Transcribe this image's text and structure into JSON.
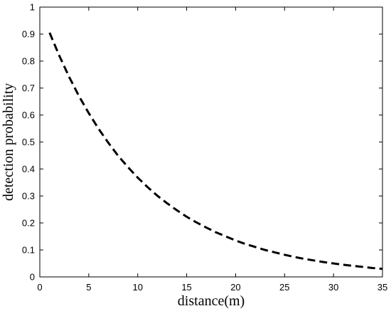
{
  "chart_data": {
    "type": "line",
    "title": "",
    "xlabel": "distance(m)",
    "ylabel": "detection probability",
    "xlim": [
      0,
      35
    ],
    "ylim": [
      0,
      1
    ],
    "xticks": [
      0,
      5,
      10,
      15,
      20,
      25,
      30,
      35
    ],
    "yticks": [
      0,
      0.1,
      0.2,
      0.3,
      0.4,
      0.5,
      0.6,
      0.7,
      0.8,
      0.9,
      1
    ],
    "xtick_labels": [
      "0",
      "5",
      "10",
      "15",
      "20",
      "25",
      "30",
      "35"
    ],
    "ytick_labels": [
      "0",
      "0.1",
      "0.2",
      "0.3",
      "0.4",
      "0.5",
      "0.6",
      "0.7",
      "0.8",
      "0.9",
      "1"
    ],
    "grid": false,
    "series": [
      {
        "line_style": "dashed",
        "color": "#000000",
        "x": [
          1,
          2,
          3,
          4,
          5,
          6,
          7,
          8,
          9,
          10,
          11,
          12,
          13,
          14,
          15,
          16,
          17,
          18,
          19,
          20,
          21,
          22,
          23,
          24,
          25,
          26,
          27,
          28,
          29,
          30,
          31,
          32,
          33,
          34,
          35
        ],
        "y": [
          0.905,
          0.819,
          0.741,
          0.67,
          0.607,
          0.549,
          0.497,
          0.449,
          0.407,
          0.368,
          0.333,
          0.301,
          0.273,
          0.247,
          0.223,
          0.202,
          0.183,
          0.165,
          0.15,
          0.135,
          0.122,
          0.111,
          0.1,
          0.091,
          0.082,
          0.074,
          0.067,
          0.061,
          0.055,
          0.05,
          0.045,
          0.041,
          0.037,
          0.033,
          0.03
        ]
      }
    ]
  }
}
